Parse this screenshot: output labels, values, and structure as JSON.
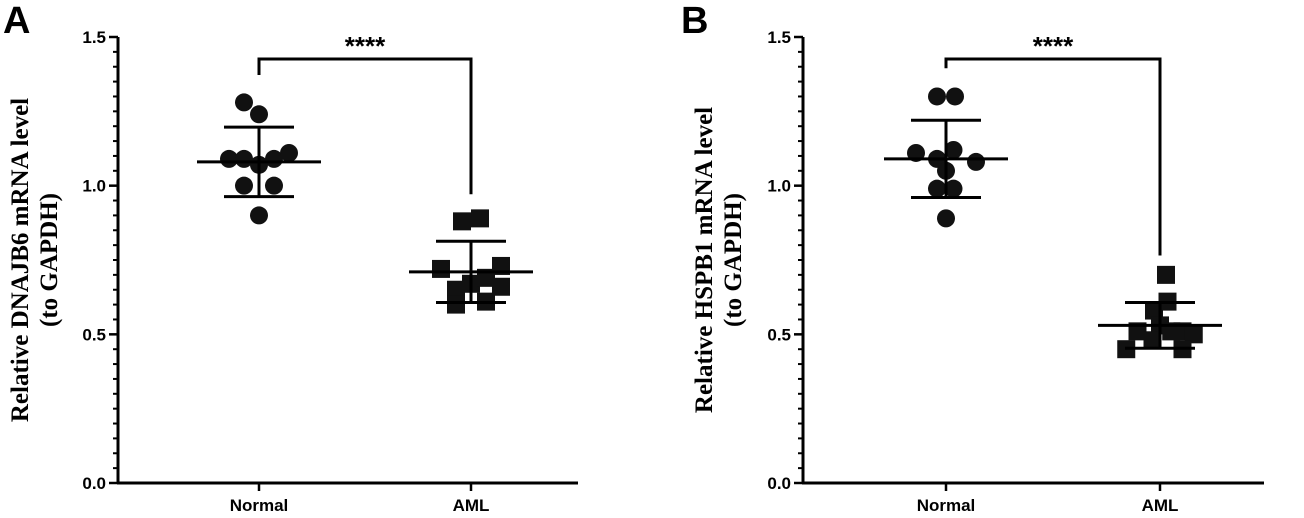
{
  "chart_data": [
    {
      "type": "scatter",
      "panel_label": "A",
      "ylabel_line1": "Relative DNAJB6 mRNA level",
      "ylabel_line2": "(to GAPDH)",
      "xlabel": "",
      "categories": [
        "Normal",
        "AML"
      ],
      "ylim": [
        0.0,
        1.5
      ],
      "yticks": [
        "0.0",
        "0.5",
        "1.0",
        "1.5"
      ],
      "significance": "****",
      "series": [
        {
          "category": "Normal",
          "marker": "circle",
          "mean": 1.08,
          "sd": 0.117,
          "points": [
            {
              "x": -0.4,
              "y": 1.09
            },
            {
              "x": -0.2,
              "y": 1.09
            },
            {
              "x": 0.2,
              "y": 1.09
            },
            {
              "x": 0.4,
              "y": 1.11
            },
            {
              "x": -0.2,
              "y": 1.28
            },
            {
              "x": 0.0,
              "y": 1.24
            },
            {
              "x": -0.2,
              "y": 1.0
            },
            {
              "x": 0.2,
              "y": 1.0
            },
            {
              "x": 0.0,
              "y": 1.07
            },
            {
              "x": 0.0,
              "y": 0.9
            }
          ]
        },
        {
          "category": "AML",
          "marker": "square",
          "mean": 0.71,
          "sd": 0.103,
          "points": [
            {
              "x": -0.4,
              "y": 0.72
            },
            {
              "x": 0.4,
              "y": 0.73
            },
            {
              "x": -0.12,
              "y": 0.88
            },
            {
              "x": 0.12,
              "y": 0.89
            },
            {
              "x": -0.2,
              "y": 0.65
            },
            {
              "x": 0.0,
              "y": 0.67
            },
            {
              "x": 0.2,
              "y": 0.69
            },
            {
              "x": -0.2,
              "y": 0.6
            },
            {
              "x": 0.2,
              "y": 0.61
            },
            {
              "x": 0.4,
              "y": 0.66
            }
          ]
        }
      ]
    },
    {
      "type": "scatter",
      "panel_label": "B",
      "ylabel_line1": "Relative HSPB1 mRNA level",
      "ylabel_line2": "(to GAPDH)",
      "xlabel": "",
      "categories": [
        "Normal",
        "AML"
      ],
      "ylim": [
        0.0,
        1.5
      ],
      "yticks": [
        "0.0",
        "0.5",
        "1.0",
        "1.5"
      ],
      "significance": "****",
      "series": [
        {
          "category": "Normal",
          "marker": "circle",
          "mean": 1.09,
          "sd": 0.13,
          "points": [
            {
              "x": -0.4,
              "y": 1.11
            },
            {
              "x": -0.12,
              "y": 1.3
            },
            {
              "x": 0.12,
              "y": 1.3
            },
            {
              "x": -0.12,
              "y": 1.09
            },
            {
              "x": 0.1,
              "y": 1.12
            },
            {
              "x": 0.4,
              "y": 1.08
            },
            {
              "x": -0.12,
              "y": 0.99
            },
            {
              "x": 0.1,
              "y": 0.99
            },
            {
              "x": 0.0,
              "y": 1.05
            },
            {
              "x": 0.0,
              "y": 0.89
            }
          ]
        },
        {
          "category": "AML",
          "marker": "square",
          "mean": 0.53,
          "sd": 0.077,
          "points": [
            {
              "x": 0.08,
              "y": 0.7
            },
            {
              "x": -0.08,
              "y": 0.58
            },
            {
              "x": 0.1,
              "y": 0.61
            },
            {
              "x": -0.3,
              "y": 0.51
            },
            {
              "x": 0.0,
              "y": 0.53
            },
            {
              "x": 0.15,
              "y": 0.51
            },
            {
              "x": 0.3,
              "y": 0.51
            },
            {
              "x": 0.45,
              "y": 0.5
            },
            {
              "x": -0.45,
              "y": 0.45
            },
            {
              "x": -0.1,
              "y": 0.48
            },
            {
              "x": 0.3,
              "y": 0.45
            }
          ]
        }
      ]
    }
  ]
}
